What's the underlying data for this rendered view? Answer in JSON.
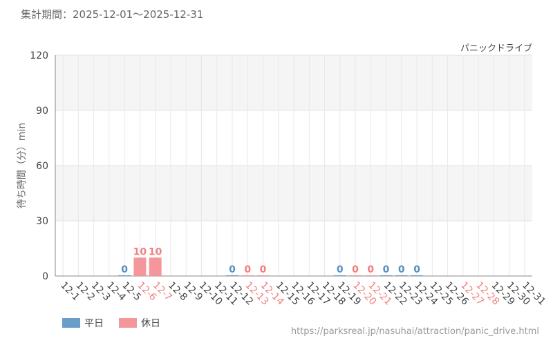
{
  "header": {
    "period_label": "集計期間：2025-12-01〜2025-12-31"
  },
  "chart_data": {
    "type": "bar",
    "title": "パニックドライブ",
    "ylabel": "待ち時間（分）min",
    "xlabel": "",
    "ylim": [
      0,
      120
    ],
    "yticks": [
      0,
      30,
      60,
      90,
      120
    ],
    "categories": [
      "12-1",
      "12-2",
      "12-3",
      "12-4",
      "12-5",
      "12-6",
      "12-7",
      "12-8",
      "12-9",
      "12-10",
      "12-11",
      "12-12",
      "12-13",
      "12-14",
      "12-15",
      "12-16",
      "12-17",
      "12-18",
      "12-19",
      "12-20",
      "12-21",
      "12-22",
      "12-23",
      "12-24",
      "12-25",
      "12-26",
      "12-27",
      "12-28",
      "12-29",
      "12-30",
      "12-31"
    ],
    "day_type": [
      "weekday",
      "weekday",
      "weekday",
      "weekday",
      "weekday",
      "holiday",
      "holiday",
      "weekday",
      "weekday",
      "weekday",
      "weekday",
      "weekday",
      "holiday",
      "holiday",
      "weekday",
      "weekday",
      "weekday",
      "weekday",
      "weekday",
      "holiday",
      "holiday",
      "weekday",
      "weekday",
      "weekday",
      "weekday",
      "weekday",
      "holiday",
      "holiday",
      "weekday",
      "weekday",
      "weekday"
    ],
    "values": [
      null,
      null,
      null,
      null,
      0,
      10,
      10,
      null,
      null,
      null,
      null,
      0,
      0,
      0,
      null,
      null,
      null,
      null,
      0,
      0,
      0,
      0,
      0,
      0,
      null,
      null,
      null,
      null,
      null,
      null,
      null
    ],
    "series": [
      {
        "name": "平日",
        "color": "#6a9ec8"
      },
      {
        "name": "休日",
        "color": "#f4979a"
      }
    ],
    "grid": true,
    "legend": "bottom-left"
  },
  "colors": {
    "weekday": "#5b8fbf",
    "holiday": "#f08080",
    "weekday_bar": "#6a9ec8",
    "holiday_bar": "#f4979a"
  },
  "footer": {
    "source_url": "https://parksreal.jp/nasuhai/attraction/panic_drive.html"
  }
}
